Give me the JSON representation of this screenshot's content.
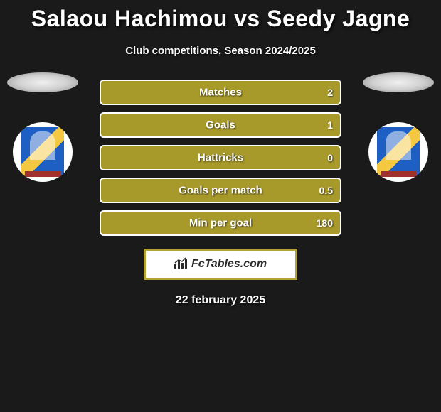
{
  "title": "Salaou Hachimou vs Seedy Jagne",
  "subtitle": "Club competitions, Season 2024/2025",
  "date": "22 february 2025",
  "logo_text": "FcTables.com",
  "colors": {
    "background": "#1a1a1a",
    "bar_fill": "#a89a2a",
    "bar_fill_dark": "#7a6f1e",
    "bar_border": "#ffffff",
    "text": "#ffffff",
    "logo_border": "#b0a432",
    "logo_bg": "#ffffff",
    "club_blue": "#1e5fc4",
    "club_yellow": "#f5c842"
  },
  "stats": [
    {
      "label": "Matches",
      "value_left": "",
      "value_right": "2",
      "fill_left_pct": 0
    },
    {
      "label": "Goals",
      "value_left": "",
      "value_right": "1",
      "fill_left_pct": 0
    },
    {
      "label": "Hattricks",
      "value_left": "",
      "value_right": "0",
      "fill_left_pct": 0
    },
    {
      "label": "Goals per match",
      "value_left": "",
      "value_right": "0.5",
      "fill_left_pct": 0
    },
    {
      "label": "Min per goal",
      "value_left": "",
      "value_right": "180",
      "fill_left_pct": 0
    }
  ],
  "players": {
    "left": {
      "club_icon": "ifk-goteborg-badge"
    },
    "right": {
      "club_icon": "ifk-goteborg-badge"
    }
  }
}
